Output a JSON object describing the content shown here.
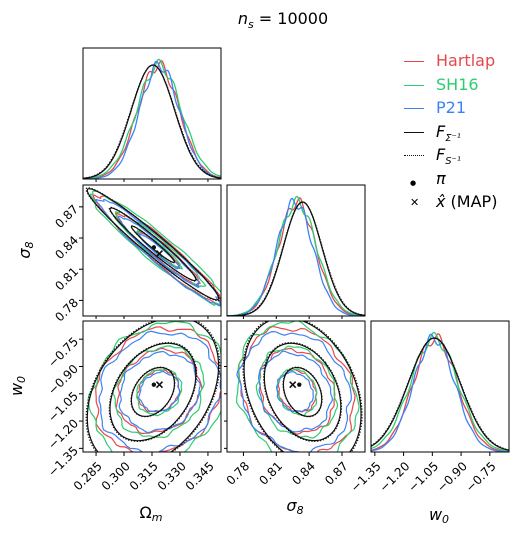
{
  "chart_data": {
    "type": "corner",
    "title": "n_s = 10000",
    "parameters": [
      {
        "name": "Omega_m",
        "label": "Ωm",
        "ticks": [
          "0.285",
          "0.300",
          "0.315",
          "0.330",
          "0.345"
        ],
        "tick_values": [
          0.285,
          0.3,
          0.315,
          0.33,
          0.345
        ],
        "range": [
          0.278,
          0.352
        ]
      },
      {
        "name": "sigma_8",
        "label": "σ8",
        "ticks": [
          "0.78",
          "0.81",
          "0.84",
          "0.87"
        ],
        "tick_values": [
          0.78,
          0.81,
          0.84,
          0.87
        ],
        "range": [
          0.765,
          0.891
        ]
      },
      {
        "name": "w_0",
        "label": "w0",
        "ticks": [
          "−1.35",
          "−1.20",
          "−1.05",
          "−0.90",
          "−0.75"
        ],
        "tick_values": [
          -1.35,
          -1.2,
          -1.05,
          -0.9,
          -0.75
        ],
        "range": [
          -1.37,
          -0.65
        ]
      }
    ],
    "series": [
      {
        "name": "Hartlap",
        "color": "#e8474b",
        "style": "solid",
        "mean": [
          0.3185,
          0.829,
          -1.035
        ],
        "sd": [
          0.0112,
          0.0172,
          0.115
        ],
        "corr": [
          -0.96,
          0.16,
          -0.18
        ]
      },
      {
        "name": "SH16",
        "color": "#2ecc71",
        "style": "solid",
        "mean": [
          0.3188,
          0.829,
          -1.04
        ],
        "sd": [
          0.012,
          0.018,
          0.125
        ],
        "corr": [
          -0.95,
          0.17,
          -0.17
        ]
      },
      {
        "name": "P21",
        "color": "#3b82f6",
        "style": "solid",
        "mean": [
          0.319,
          0.827,
          -1.04
        ],
        "sd": [
          0.0107,
          0.0166,
          0.108
        ],
        "corr": [
          -0.96,
          0.13,
          -0.16
        ]
      },
      {
        "name": "F_{Σ⁻¹}",
        "color": "#111111",
        "style": "solid",
        "mean": [
          0.3155,
          0.834,
          -1.04
        ],
        "sd": [
          0.0116,
          0.0176,
          0.135
        ],
        "corr": [
          -0.97,
          0.35,
          -0.3
        ]
      },
      {
        "name": "F_{S⁻¹}",
        "color": "#111111",
        "style": "dotted",
        "mean": [
          0.3155,
          0.834,
          -1.04
        ],
        "sd": [
          0.0118,
          0.0179,
          0.137
        ],
        "corr": [
          -0.97,
          0.35,
          -0.3
        ]
      }
    ],
    "points": [
      {
        "name": "π",
        "marker": "dot",
        "values": [
          0.316,
          0.831,
          -1.0
        ]
      },
      {
        "name": "x̂ (MAP)",
        "marker": "cross",
        "values": [
          0.319,
          0.825,
          -1.0
        ]
      }
    ],
    "contour_levels": [
      0.39,
      0.86,
      0.99
    ]
  },
  "legend": [
    {
      "label": "Hartlap",
      "color": "#e8474b",
      "kind": "line"
    },
    {
      "label": "SH16",
      "color": "#2ecc71",
      "kind": "line"
    },
    {
      "label": "P21",
      "color": "#3b82f6",
      "kind": "line"
    },
    {
      "label": "F",
      "sup": "Σ⁻¹",
      "color": "#111111",
      "kind": "line"
    },
    {
      "label": "F",
      "sup": "S⁻¹",
      "color": "#111111",
      "kind": "dotted"
    },
    {
      "label": "π",
      "color": "#111111",
      "kind": "dot"
    },
    {
      "label": "x̂ (MAP)",
      "color": "#111111",
      "kind": "cross"
    }
  ]
}
